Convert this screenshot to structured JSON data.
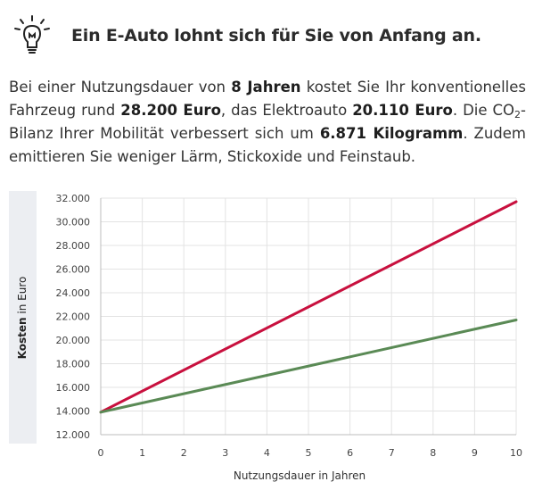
{
  "header": {
    "icon": "lightbulb-icon",
    "title": "Ein E-Auto lohnt sich für Sie von Anfang an."
  },
  "intro": {
    "t1": "Bei einer Nutzungsdauer von ",
    "b1": "8 Jahren",
    "t2": " kostet Sie Ihr konventionelles Fahrzeug rund ",
    "b2": "28.200 Euro",
    "t3": ", das Elektroauto ",
    "b3": "20.110 Euro",
    "t4": ". Die CO",
    "sub": "2",
    "t5": "-Bilanz Ihrer Mobilität verbessert sich um ",
    "b4": "6.871 Kilogramm",
    "t6": ". Zudem emittieren Sie weniger Lärm, Stickoxide und Feinstaub."
  },
  "chart_data": {
    "type": "line",
    "ylabel_bold": "Kosten",
    "ylabel_rest": " in Euro",
    "xlabel": "Nutzungsdauer in Jahren",
    "x": [
      0,
      10
    ],
    "xlim": [
      0,
      10
    ],
    "ylim": [
      12000,
      32000
    ],
    "xticks": [
      "0",
      "1",
      "2",
      "3",
      "4",
      "5",
      "6",
      "7",
      "8",
      "9",
      "10"
    ],
    "yticks": [
      "12.000",
      "14.000",
      "16.000",
      "18.000",
      "20.000",
      "22.000",
      "24.000",
      "26.000",
      "28.000",
      "30.000",
      "32.000"
    ],
    "grid": true,
    "series": [
      {
        "values": [
          13900,
          31700
        ],
        "color": "#c8103e"
      },
      {
        "values": [
          13900,
          21700
        ],
        "color": "#5a8a55"
      }
    ]
  }
}
